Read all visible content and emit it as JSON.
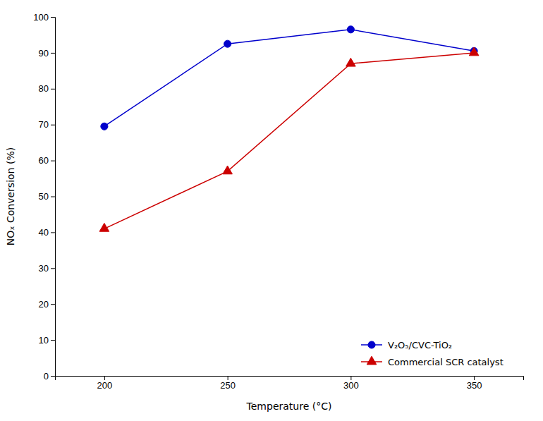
{
  "chart_data": {
    "type": "line",
    "x": [
      200,
      250,
      300,
      350
    ],
    "series": [
      {
        "name": "V₂O₅/CVC-TiO₂",
        "color": "#0000CC",
        "marker": "circle",
        "values": [
          69.5,
          92.5,
          96.5,
          90.5
        ]
      },
      {
        "name": "Commercial SCR catalyst",
        "color": "#CC0000",
        "marker": "triangle",
        "values": [
          41.0,
          57.0,
          87.0,
          90.0
        ]
      }
    ],
    "xlabel": "Temperature (°C)",
    "ylabel": "NOₓ Conversion (%)",
    "xlim": [
      180,
      370
    ],
    "ylim": [
      0,
      100
    ],
    "xticks": [
      200,
      250,
      300,
      350
    ],
    "yticks": [
      0,
      10,
      20,
      30,
      40,
      50,
      60,
      70,
      80,
      90,
      100
    ],
    "legend": "lower right",
    "grid": false
  }
}
